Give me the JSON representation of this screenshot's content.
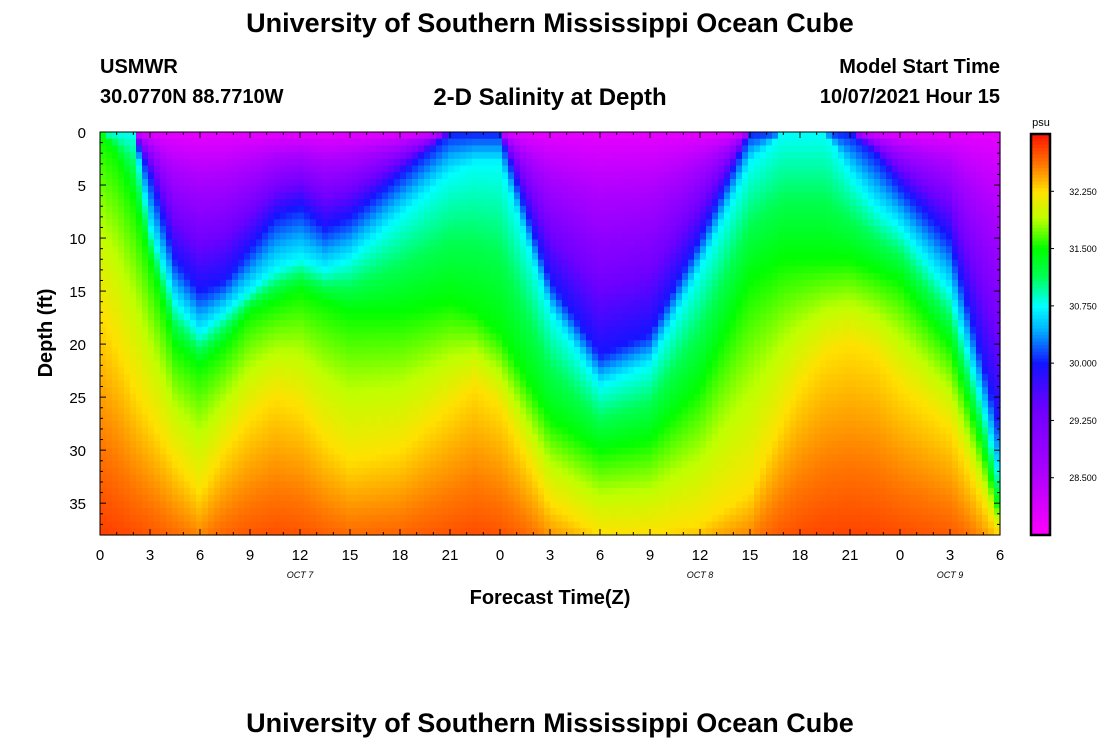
{
  "header": {
    "title": "University of Southern Mississippi Ocean Cube",
    "station_id": "USMWR",
    "station_coords": "30.0770N  88.7710W",
    "subtitle": "2-D Salinity at Depth",
    "model_start_label": "Model Start Time",
    "model_start_time": "10/07/2021 Hour 15"
  },
  "footer": {
    "title": "University of Southern Mississippi Ocean Cube"
  },
  "chart_data": {
    "type": "heatmap",
    "title": "2-D Salinity at Depth",
    "xlabel": "Forecast Time(Z)",
    "ylabel": "Depth (ft)",
    "x_range_hours": [
      0,
      54
    ],
    "x_ticks": [
      {
        "h": 0,
        "label": "0"
      },
      {
        "h": 3,
        "label": "3"
      },
      {
        "h": 6,
        "label": "6"
      },
      {
        "h": 9,
        "label": "9"
      },
      {
        "h": 12,
        "label": "12"
      },
      {
        "h": 15,
        "label": "15"
      },
      {
        "h": 18,
        "label": "18"
      },
      {
        "h": 21,
        "label": "21"
      },
      {
        "h": 24,
        "label": "0"
      },
      {
        "h": 27,
        "label": "3"
      },
      {
        "h": 30,
        "label": "6"
      },
      {
        "h": 33,
        "label": "9"
      },
      {
        "h": 36,
        "label": "12"
      },
      {
        "h": 39,
        "label": "15"
      },
      {
        "h": 42,
        "label": "18"
      },
      {
        "h": 45,
        "label": "21"
      },
      {
        "h": 48,
        "label": "0"
      },
      {
        "h": 51,
        "label": "3"
      },
      {
        "h": 54,
        "label": "6"
      }
    ],
    "date_labels": [
      {
        "h": 12,
        "label": "OCT 7"
      },
      {
        "h": 36,
        "label": "OCT 8"
      },
      {
        "h": 51,
        "label": "OCT 9"
      }
    ],
    "y_range_ft": [
      0,
      38
    ],
    "y_ticks": [
      0,
      5,
      10,
      15,
      20,
      25,
      30,
      35
    ],
    "colorbar": {
      "units": "psu",
      "range": [
        27.75,
        33.0
      ],
      "tick_labels": [
        "32.250",
        "31.500",
        "30.750",
        "30.000",
        "29.250",
        "28.500"
      ],
      "tick_values": [
        32.25,
        31.5,
        30.75,
        30.0,
        29.25,
        28.5
      ]
    },
    "salinity_model": {
      "description": "isohaline depths (ft) vs forecast hour, read from the plot",
      "hours": [
        0,
        1,
        2,
        3,
        4.5,
        6,
        7.5,
        9,
        10.5,
        12,
        13.5,
        15,
        18,
        21,
        22.5,
        24,
        27,
        30,
        33,
        36,
        39,
        41,
        42,
        43.5,
        45,
        46.5,
        48,
        51,
        53,
        54
      ],
      "iso_30": [
        0,
        0,
        0,
        4,
        12,
        15,
        14,
        11,
        8,
        7,
        9,
        8,
        4,
        0,
        0,
        0,
        14,
        21,
        19,
        10,
        0,
        0,
        0,
        0,
        0,
        2,
        5,
        10,
        22,
        28
      ],
      "iso_30_75": [
        0,
        0,
        0,
        9,
        16,
        19,
        17,
        15,
        13,
        12,
        13,
        12,
        8,
        4,
        3,
        3,
        17,
        24,
        22,
        13,
        3,
        0,
        0,
        0,
        4,
        7,
        9,
        15,
        26,
        33
      ],
      "iso_31_5": [
        0,
        2,
        6,
        12,
        20,
        22,
        20,
        17,
        16,
        15,
        16,
        17,
        17,
        16,
        17,
        19,
        27,
        30,
        29,
        24,
        14,
        12,
        12,
        12,
        12,
        13,
        14,
        20,
        30,
        36
      ],
      "iso_32_25": [
        17,
        20,
        24,
        27,
        31,
        34,
        30,
        27,
        25,
        26,
        29,
        31,
        30,
        26,
        24,
        26,
        35,
        38,
        38,
        37,
        34,
        27,
        24,
        21,
        20,
        21,
        24,
        28,
        35,
        38
      ]
    }
  }
}
